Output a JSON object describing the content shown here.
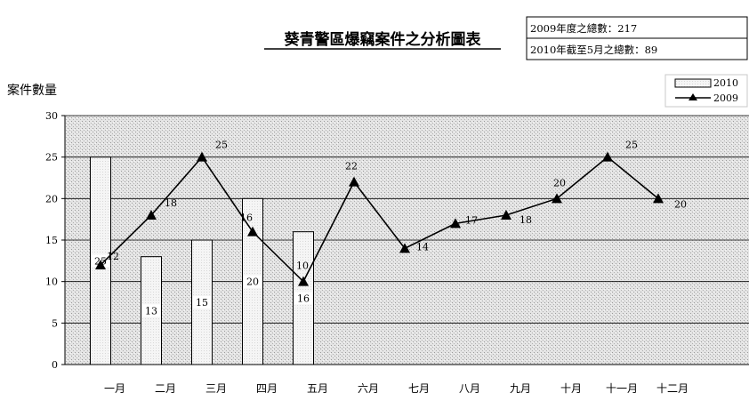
{
  "chart_data": {
    "type": "bar+line",
    "title": "葵青警區爆竊案件之分析圖表",
    "info_box": [
      "2009年度之總數：217",
      "2010年截至5月之總數：89"
    ],
    "ylabel": "案件數量",
    "ylim": [
      0,
      30
    ],
    "yticks": [
      0,
      5,
      10,
      15,
      20,
      25,
      30
    ],
    "grid": true,
    "legend_position": "top-right",
    "categories": [
      "一月",
      "二月",
      "三月",
      "四月",
      "五月",
      "六月",
      "七月",
      "八月",
      "九月",
      "十月",
      "十一月",
      "十二月"
    ],
    "series": [
      {
        "name": "2010",
        "type": "bar",
        "values": [
          25,
          13,
          15,
          20,
          16,
          null,
          null,
          null,
          null,
          null,
          null,
          null
        ]
      },
      {
        "name": "2009",
        "type": "line",
        "values": [
          12,
          18,
          25,
          16,
          10,
          22,
          14,
          17,
          18,
          20,
          25,
          20
        ]
      }
    ]
  }
}
